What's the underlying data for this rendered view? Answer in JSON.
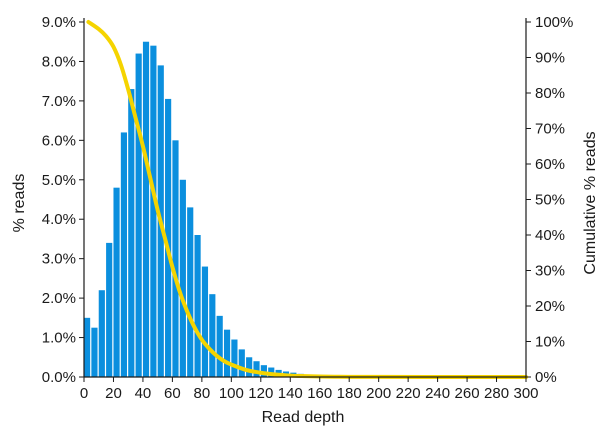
{
  "chart_data": {
    "type": "bar",
    "xlabel": "Read depth",
    "ylabel": "% reads",
    "y2label": "Cumulative % reads",
    "xlim": [
      0,
      300
    ],
    "ylim": [
      0,
      9
    ],
    "y2lim": [
      0,
      100
    ],
    "x_ticks": [
      "0",
      "20",
      "40",
      "60",
      "80",
      "100",
      "120",
      "140",
      "160",
      "180",
      "200",
      "220",
      "240",
      "260",
      "280",
      "300"
    ],
    "y_ticks": [
      "0.0%",
      "1.0%",
      "2.0%",
      "3.0%",
      "4.0%",
      "5.0%",
      "6.0%",
      "7.0%",
      "8.0%",
      "9.0%"
    ],
    "y2_ticks": [
      "0%",
      "10%",
      "20%",
      "30%",
      "40%",
      "50%",
      "60%",
      "70%",
      "80%",
      "90%",
      "100%"
    ],
    "grid": false,
    "bar_color": "#0b8fde",
    "line_color": "#f5d400",
    "bar_width": 5,
    "series": [
      {
        "type": "bar",
        "axis": "left",
        "x": [
          0,
          5,
          10,
          15,
          20,
          25,
          30,
          35,
          40,
          45,
          50,
          55,
          60,
          65,
          70,
          75,
          80,
          85,
          90,
          95,
          100,
          105,
          110,
          115,
          120,
          125,
          130,
          135,
          140,
          145,
          150,
          155,
          160,
          165,
          170,
          175,
          180
        ],
        "values": [
          1.5,
          1.25,
          2.2,
          3.4,
          4.8,
          6.2,
          7.3,
          8.2,
          8.5,
          8.4,
          7.9,
          7.05,
          6.0,
          5.0,
          4.3,
          3.6,
          2.8,
          2.1,
          1.55,
          1.2,
          0.95,
          0.7,
          0.5,
          0.4,
          0.3,
          0.24,
          0.18,
          0.14,
          0.11,
          0.08,
          0.06,
          0.05,
          0.04,
          0.03,
          0.02,
          0.01,
          0.01
        ]
      },
      {
        "type": "line",
        "axis": "right",
        "x": [
          3,
          10,
          15,
          20,
          25,
          30,
          35,
          40,
          45,
          50,
          55,
          60,
          65,
          70,
          75,
          80,
          85,
          90,
          95,
          100,
          110,
          120,
          130,
          140,
          150,
          160,
          170,
          180,
          200,
          250,
          300
        ],
        "values": [
          100,
          98,
          96,
          93,
          88,
          81,
          73,
          65,
          56,
          47,
          39,
          31,
          24,
          18.5,
          14,
          10.5,
          8,
          6,
          4.5,
          3.5,
          2,
          1.2,
          0.7,
          0.4,
          0.25,
          0.15,
          0.08,
          0.04,
          0.02,
          0,
          0
        ]
      }
    ]
  }
}
